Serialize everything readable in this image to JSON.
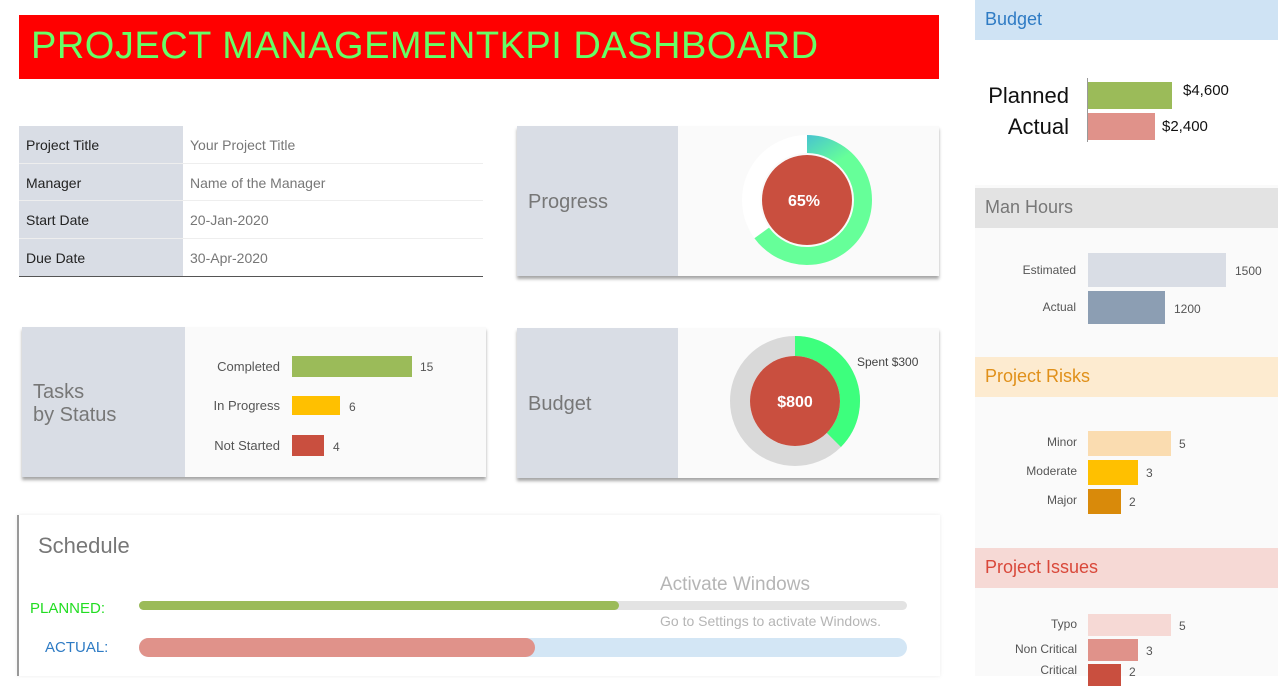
{
  "title": "PROJECT MANAGEMENTKPI DASHBOARD",
  "info": [
    {
      "key": "Project Title",
      "value": "Your Project Title"
    },
    {
      "key": "Manager",
      "value": "Name of the Manager"
    },
    {
      "key": "Start Date",
      "value": "20-Jan-2020"
    },
    {
      "key": "Due Date",
      "value": "30-Apr-2020"
    }
  ],
  "progress": {
    "label": "Progress",
    "value_text": "65%",
    "percent": 65
  },
  "tasks": {
    "label1": "Tasks",
    "label2": "by Status",
    "items": [
      {
        "label": "Completed",
        "value": "15",
        "color": "#9bbb59"
      },
      {
        "label": "In Progress",
        "value": "6",
        "color": "#ffc000"
      },
      {
        "label": "Not Started",
        "value": "4",
        "color": "#c94f3f"
      }
    ]
  },
  "budget_card": {
    "label": "Budget",
    "total_text": "$800",
    "spent_label": "Spent",
    "spent_text": "$300",
    "total": 800,
    "spent": 300
  },
  "schedule": {
    "title": "Schedule",
    "planned_label": "PLANNED:",
    "actual_label": "ACTUAL:",
    "planned_pct": 62.5,
    "actual_pct": 51.5
  },
  "right": {
    "budget": {
      "title": "Budget",
      "planned_label": "Planned",
      "actual_label": "Actual",
      "planned_text": "$4,600",
      "actual_text": "$2,400",
      "planned": 4600,
      "actual": 2400
    },
    "man_hours": {
      "title": "Man Hours",
      "items": [
        {
          "label": "Estimated",
          "value": "1500"
        },
        {
          "label": "Actual",
          "value": "1200"
        }
      ]
    },
    "risks": {
      "title": "Project Risks",
      "items": [
        {
          "label": "Minor",
          "value": "5"
        },
        {
          "label": "Moderate",
          "value": "3"
        },
        {
          "label": "Major",
          "value": "2"
        }
      ]
    },
    "issues": {
      "title": "Project Issues",
      "items": [
        {
          "label": "Typo",
          "value": "5"
        },
        {
          "label": "Non Critical",
          "value": "3"
        },
        {
          "label": "Critical",
          "value": "2"
        }
      ]
    }
  },
  "watermark": {
    "line1": "Activate Windows",
    "line2": "Go to Settings to activate Windows."
  }
}
